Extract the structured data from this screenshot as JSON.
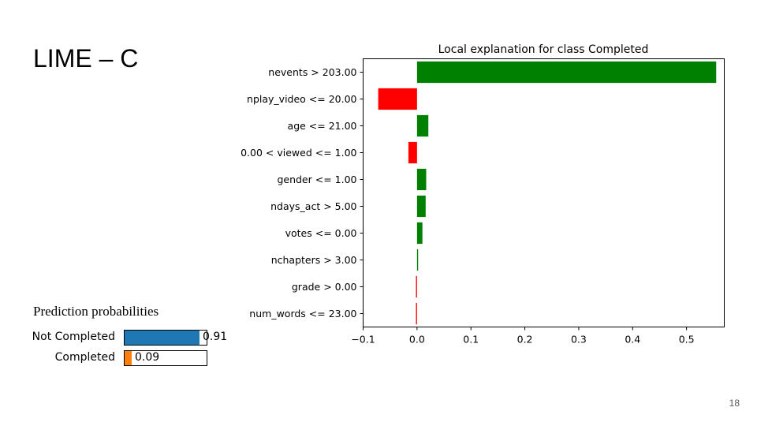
{
  "slide": {
    "title": "LIME – C",
    "page_number": "18"
  },
  "prediction_probabilities": {
    "title": "Prediction probabilities",
    "items": [
      {
        "label": "Not Completed",
        "value": 0.91,
        "value_label": "0.91",
        "color": "#1f77b4"
      },
      {
        "label": "Completed",
        "value": 0.09,
        "value_label": "0.09",
        "color": "#ff7f0e"
      }
    ]
  },
  "chart_data": {
    "type": "bar",
    "orientation": "horizontal",
    "title": "Local explanation for class Completed",
    "xlabel": "",
    "ylabel": "",
    "categories": [
      "nevents > 203.00",
      "nplay_video <= 20.00",
      "age <= 21.00",
      "0.00 < viewed <= 1.00",
      "gender <= 1.00",
      "ndays_act > 5.00",
      "votes <= 0.00",
      "nchapters > 3.00",
      "grade > 0.00",
      "num_words <= 23.00"
    ],
    "values": [
      0.555,
      -0.072,
      0.021,
      -0.016,
      0.017,
      0.016,
      0.01,
      0.002,
      -0.002,
      -0.002
    ],
    "xlim": [
      -0.1,
      0.57
    ],
    "xticks": [
      -0.1,
      0.0,
      0.1,
      0.2,
      0.3,
      0.4,
      0.5
    ],
    "xtick_labels": [
      "−0.1",
      "0.0",
      "0.1",
      "0.2",
      "0.3",
      "0.4",
      "0.5"
    ],
    "positive_color": "#008000",
    "negative_color": "#ff0000",
    "grid": false
  }
}
